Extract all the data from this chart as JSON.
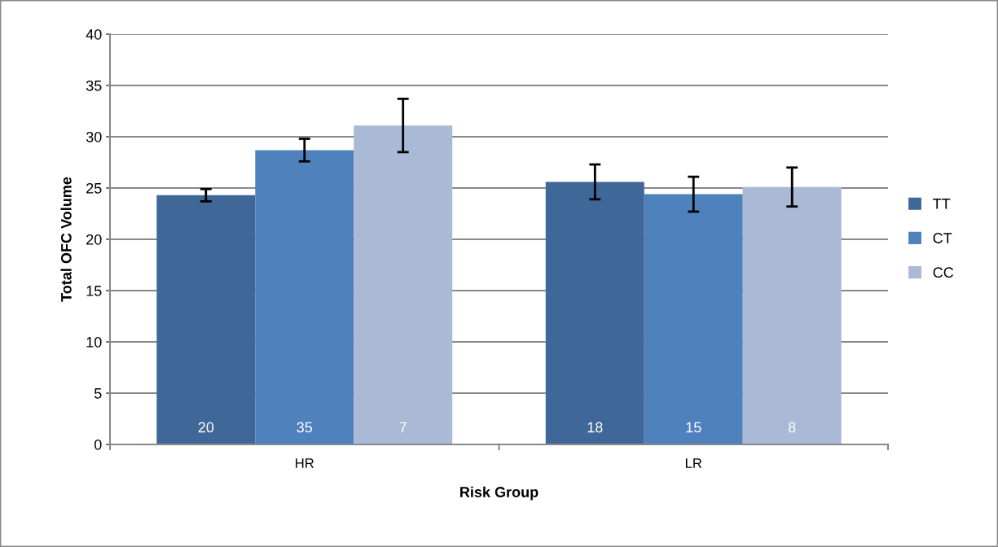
{
  "chart_data": {
    "type": "bar",
    "xlabel": "Risk Group",
    "ylabel": "Total OFC Volume",
    "categories": [
      "HR",
      "LR"
    ],
    "series": [
      {
        "name": "TT",
        "color": "#3f6899",
        "values": [
          24.3,
          25.6
        ],
        "errors": [
          0.6,
          1.7
        ]
      },
      {
        "name": "CT",
        "color": "#4f81bd",
        "values": [
          28.7,
          24.4
        ],
        "errors": [
          1.1,
          1.7
        ]
      },
      {
        "name": "CC",
        "color": "#a9b9d6",
        "values": [
          31.1,
          25.1
        ],
        "errors": [
          2.6,
          1.9
        ]
      }
    ],
    "annotations": [
      "20",
      "35",
      "7",
      "18",
      "15",
      "8"
    ],
    "ylim": [
      0,
      40
    ],
    "yticks": [
      0,
      5,
      10,
      15,
      20,
      25,
      30,
      35,
      40
    ],
    "grid": "y",
    "legend": "right"
  }
}
